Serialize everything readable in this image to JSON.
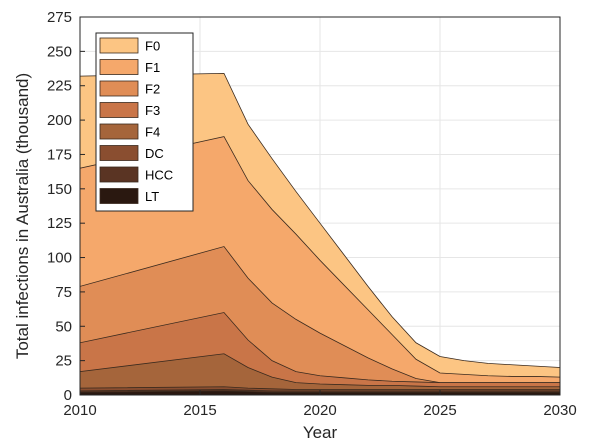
{
  "chart_data": {
    "type": "area",
    "stacked": true,
    "title": "",
    "xlabel": "Year",
    "ylabel": "Total infections in Australia (thousand)",
    "xlim": [
      2010,
      2030
    ],
    "ylim": [
      0,
      275
    ],
    "xticks": [
      2010,
      2015,
      2020,
      2025,
      2030
    ],
    "yticks": [
      0,
      25,
      50,
      75,
      100,
      125,
      150,
      175,
      200,
      225,
      250,
      275
    ],
    "grid": true,
    "legend_position": "top-left",
    "x": [
      2010,
      2016,
      2017,
      2018,
      2019,
      2020,
      2021,
      2022,
      2023,
      2024,
      2025,
      2026,
      2027,
      2028,
      2029,
      2030
    ],
    "cumulative_tops": [
      {
        "name": "LT",
        "values": [
          2,
          3,
          2.5,
          2,
          2,
          2,
          2,
          2,
          2,
          2,
          2,
          2,
          2,
          2,
          2,
          2
        ]
      },
      {
        "name": "HCC",
        "values": [
          3,
          4,
          3.5,
          3,
          3,
          3,
          3,
          3,
          3,
          3,
          3,
          3,
          3,
          3,
          3,
          3
        ]
      },
      {
        "name": "DC",
        "values": [
          5,
          6,
          5,
          4.5,
          4,
          4,
          4,
          4,
          4,
          4,
          4,
          4,
          4,
          4,
          4,
          4
        ]
      },
      {
        "name": "F4",
        "values": [
          17,
          30,
          20,
          13,
          9,
          8,
          7.5,
          7,
          7,
          6.5,
          6,
          6,
          6,
          6,
          6,
          6
        ]
      },
      {
        "name": "F3",
        "values": [
          38,
          60,
          40,
          25,
          17,
          14,
          12.5,
          11,
          10,
          9.5,
          9,
          9,
          9,
          9,
          9,
          9
        ]
      },
      {
        "name": "F2",
        "values": [
          79,
          108,
          85,
          67,
          55,
          45,
          36,
          27,
          19,
          12,
          9,
          9,
          9,
          9,
          9,
          9
        ]
      },
      {
        "name": "F1",
        "values": [
          165,
          188,
          156,
          135,
          117,
          98,
          80,
          62,
          44,
          26,
          16,
          15,
          14,
          13.5,
          13.5,
          13
        ]
      },
      {
        "name": "F0",
        "values": [
          232,
          234,
          197,
          172,
          148,
          125,
          102,
          79,
          57,
          38,
          28,
          25,
          23,
          22,
          21,
          20
        ]
      }
    ],
    "colors": {
      "F0": "#fcc583",
      "F1": "#f5a86b",
      "F2": "#e08d56",
      "F3": "#c97548",
      "F4": "#a5653b",
      "DC": "#8a4e30",
      "HCC": "#5a3423",
      "LT": "#2a1810"
    },
    "legend": [
      "F0",
      "F1",
      "F2",
      "F3",
      "F4",
      "DC",
      "HCC",
      "LT"
    ]
  }
}
